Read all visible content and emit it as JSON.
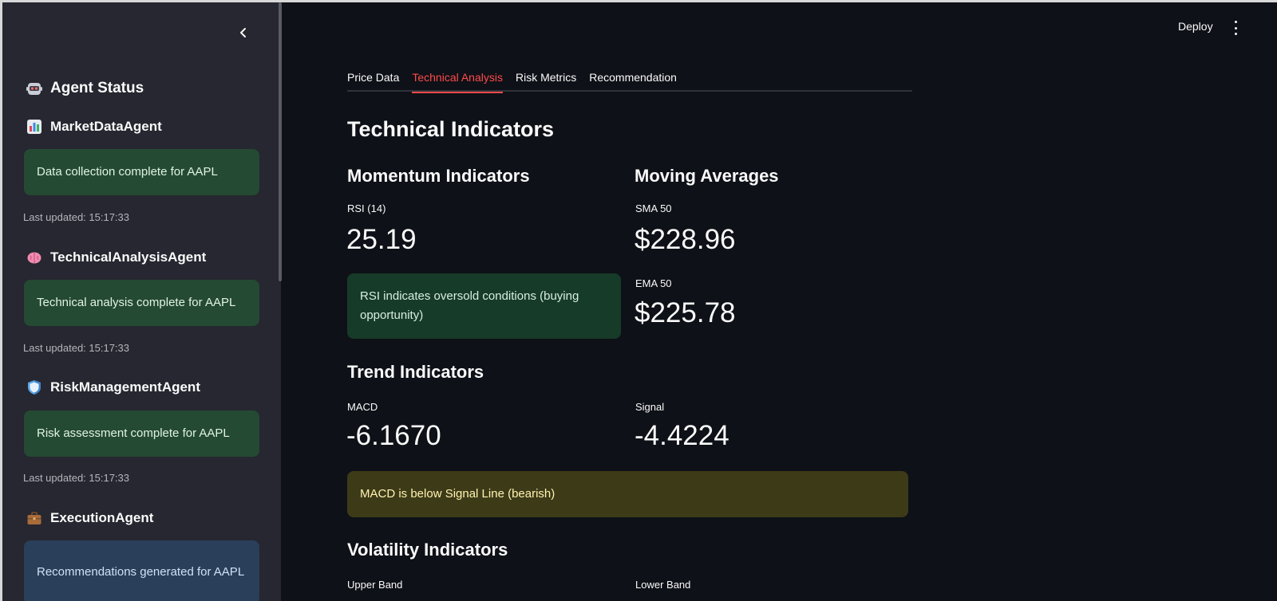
{
  "sidebar": {
    "title": "Agent Status",
    "title_icon": "robot-icon",
    "agents": [
      {
        "name": "MarketDataAgent",
        "icon": "bar-chart-icon",
        "message": "Data collection complete for AAPL",
        "kind": "success",
        "updated": "Last updated: 15:17:33"
      },
      {
        "name": "TechnicalAnalysisAgent",
        "icon": "brain-icon",
        "message": "Technical analysis complete for AAPL",
        "kind": "success",
        "updated": "Last updated: 15:17:33"
      },
      {
        "name": "RiskManagementAgent",
        "icon": "shield-icon",
        "message": "Risk assessment complete for AAPL",
        "kind": "success",
        "updated": "Last updated: 15:17:33"
      },
      {
        "name": "ExecutionAgent",
        "icon": "briefcase-icon",
        "message": "Recommendations generated for AAPL",
        "kind": "info"
      }
    ]
  },
  "header": {
    "deploy_label": "Deploy"
  },
  "tabs": [
    {
      "label": "Price Data",
      "active": false
    },
    {
      "label": "Technical Analysis",
      "active": true
    },
    {
      "label": "Risk Metrics",
      "active": false
    },
    {
      "label": "Recommendation",
      "active": false
    }
  ],
  "main": {
    "title": "Technical Indicators",
    "momentum": {
      "heading": "Momentum Indicators",
      "rsi_label": "RSI (14)",
      "rsi_value": "25.19",
      "rsi_note": "RSI indicates oversold conditions (buying opportunity)"
    },
    "moving_averages": {
      "heading": "Moving Averages",
      "sma_label": "SMA 50",
      "sma_value": "$228.96",
      "ema_label": "EMA 50",
      "ema_value": "$225.78"
    },
    "trend": {
      "heading": "Trend Indicators",
      "macd_label": "MACD",
      "macd_value": "-6.1670",
      "signal_label": "Signal",
      "signal_value": "-4.4224",
      "note": "MACD is below Signal Line (bearish)"
    },
    "volatility": {
      "heading": "Volatility Indicators",
      "upper_label": "Upper Band",
      "lower_label": "Lower Band"
    }
  },
  "colors": {
    "accent": "#ff4b4b",
    "success_bg": "#254a33",
    "info_bg": "#2a3f5a",
    "warning_bg": "#3d3a18"
  }
}
